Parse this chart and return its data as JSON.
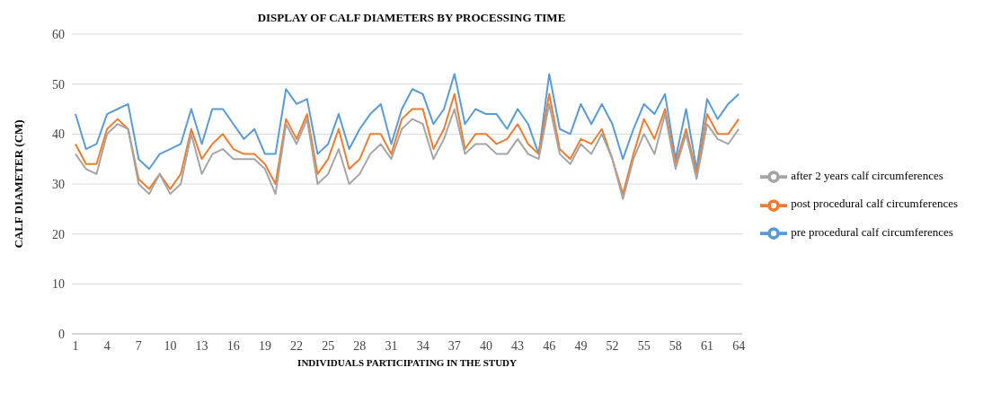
{
  "chart_data": {
    "type": "line",
    "title": "DISPLAY OF CALF DIAMETERS BY PROCESSING TIME",
    "xlabel": "INDIVIDUALS PARTICIPATING IN THE STUDY",
    "ylabel": "CALF DIAMETER (CM)",
    "categories": [
      "1",
      null,
      null,
      "4",
      null,
      null,
      "7",
      null,
      null,
      "10",
      null,
      null,
      "13",
      null,
      null,
      "16",
      null,
      null,
      "19",
      null,
      null,
      "22",
      null,
      null,
      "25",
      null,
      null,
      "28",
      null,
      null,
      "31",
      null,
      null,
      "34",
      null,
      null,
      "37",
      null,
      null,
      "40",
      null,
      null,
      "43",
      null,
      null,
      "46",
      null,
      null,
      "49",
      null,
      null,
      "52",
      null,
      null,
      "55",
      null,
      null,
      "58",
      null,
      null,
      "61",
      null,
      null,
      "64"
    ],
    "series": [
      {
        "name": "pre procedural calf circumferences",
        "color": "#5b9bd5",
        "values": [
          44,
          37,
          38,
          44,
          45,
          46,
          35,
          33,
          36,
          37,
          38,
          45,
          38,
          45,
          45,
          42,
          39,
          41,
          36,
          36,
          49,
          46,
          47,
          36,
          38,
          44,
          37,
          41,
          44,
          46,
          38,
          45,
          49,
          48,
          42,
          45,
          52,
          42,
          45,
          44,
          44,
          41,
          45,
          42,
          36,
          52,
          41,
          40,
          46,
          42,
          46,
          42,
          35,
          41,
          46,
          44,
          48,
          35,
          45,
          33,
          47,
          43,
          46,
          48
        ]
      },
      {
        "name": "post procedural calf circumferences",
        "color": "#ed7d31",
        "values": [
          38,
          34,
          34,
          41,
          43,
          41,
          31,
          29,
          32,
          29,
          32,
          41,
          35,
          38,
          40,
          37,
          36,
          36,
          34,
          30,
          43,
          39,
          44,
          32,
          35,
          41,
          33,
          35,
          40,
          40,
          36,
          43,
          45,
          45,
          37,
          41,
          48,
          37,
          40,
          40,
          38,
          39,
          42,
          38,
          36,
          48,
          37,
          35,
          39,
          38,
          41,
          35,
          28,
          36,
          43,
          39,
          45,
          34,
          41,
          32,
          44,
          40,
          40,
          43
        ]
      },
      {
        "name": "after 2 years calf circumferences",
        "color": "#a5a5a5",
        "values": [
          36,
          33,
          32,
          40,
          42,
          41,
          30,
          28,
          32,
          28,
          30,
          40,
          32,
          36,
          37,
          35,
          35,
          35,
          33,
          28,
          42,
          38,
          43,
          30,
          32,
          37,
          30,
          32,
          36,
          38,
          35,
          41,
          43,
          42,
          35,
          39,
          45,
          36,
          38,
          38,
          36,
          36,
          39,
          36,
          35,
          46,
          36,
          34,
          38,
          36,
          40,
          35,
          27,
          35,
          40,
          36,
          44,
          33,
          40,
          31,
          42,
          39,
          38,
          41
        ]
      }
    ],
    "ylim": [
      0,
      60
    ],
    "yticks": [
      0,
      10,
      20,
      30,
      40,
      50,
      60
    ],
    "grid": "y",
    "legend": "right",
    "marker": "none",
    "line_style": "solid"
  }
}
